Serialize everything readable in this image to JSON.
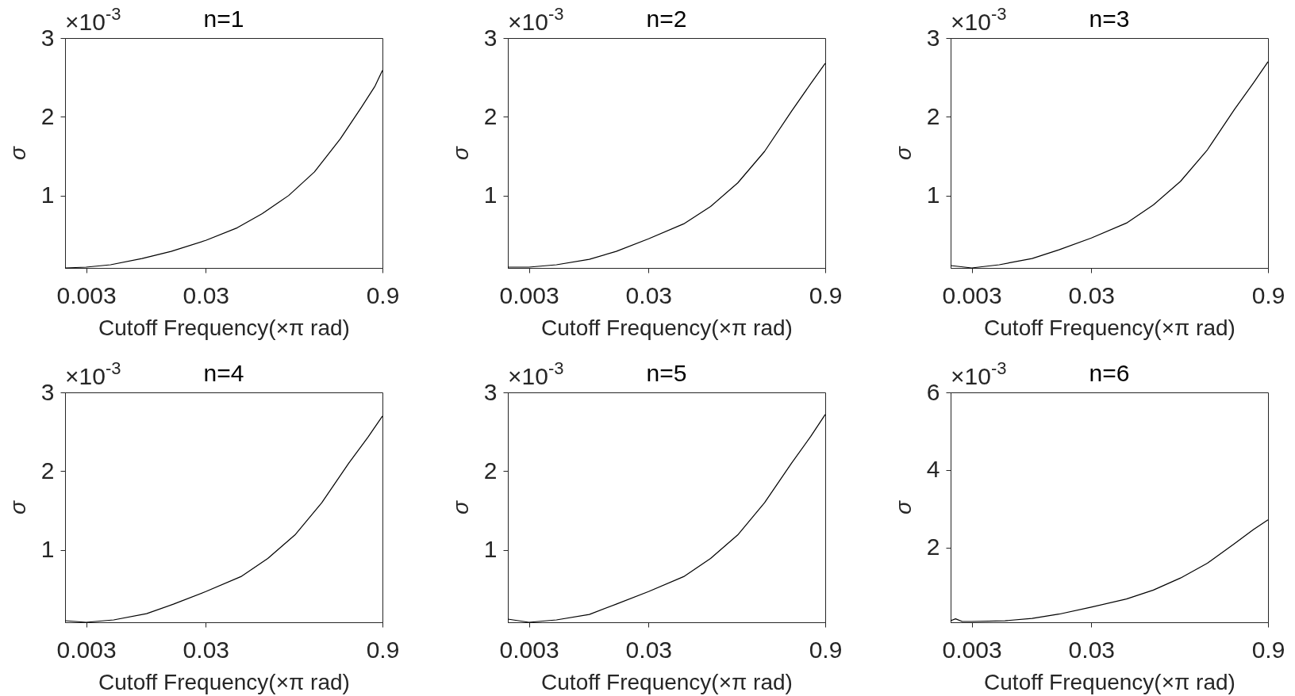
{
  "chart_data": [
    {
      "type": "line",
      "title": "n=1",
      "xlabel": "Cutoff Frequency(×π rad)",
      "ylabel": "σ",
      "annotations": [
        "×10$^{-3}$"
      ],
      "log": "x",
      "color": "#000000",
      "xlim": [
        0.002,
        0.9
      ],
      "ylim": [
        0.08,
        3
      ],
      "xticks": [
        0.003,
        0.03,
        0.9
      ],
      "yticks": [
        1,
        2,
        3
      ],
      "x": [
        0.002,
        0.003,
        0.0048,
        0.0088,
        0.0154,
        0.03,
        0.055,
        0.089,
        0.148,
        0.243,
        0.4,
        0.6,
        0.78,
        0.9
      ],
      "values": [
        0.08,
        0.09,
        0.12,
        0.2,
        0.29,
        0.43,
        0.59,
        0.77,
        1.0,
        1.3,
        1.72,
        2.12,
        2.39,
        2.59
      ]
    },
    {
      "type": "line",
      "title": "n=2",
      "xlabel": "Cutoff Frequency(×π rad)",
      "ylabel": "σ",
      "annotations": [
        "×10$^{-3}$"
      ],
      "log": "x",
      "color": "#000000",
      "xlim": [
        0.002,
        0.9
      ],
      "ylim": [
        0.08,
        3
      ],
      "xticks": [
        0.003,
        0.03,
        0.9
      ],
      "yticks": [
        1,
        2,
        3
      ],
      "x": [
        0.002,
        0.003,
        0.0051,
        0.0096,
        0.0161,
        0.03,
        0.059,
        0.099,
        0.167,
        0.28,
        0.47,
        0.68,
        0.9
      ],
      "values": [
        0.09,
        0.09,
        0.12,
        0.19,
        0.29,
        0.45,
        0.64,
        0.86,
        1.16,
        1.56,
        2.07,
        2.42,
        2.68
      ]
    },
    {
      "type": "line",
      "title": "n=3",
      "xlabel": "Cutoff Frequency(×π rad)",
      "ylabel": "σ",
      "annotations": [
        "×10$^{-3}$"
      ],
      "log": "x",
      "color": "#000000",
      "xlim": [
        0.002,
        0.9
      ],
      "ylim": [
        0.08,
        3
      ],
      "xticks": [
        0.003,
        0.03,
        0.9
      ],
      "yticks": [
        1,
        2,
        3
      ],
      "x": [
        0.002,
        0.003,
        0.0051,
        0.0096,
        0.0161,
        0.03,
        0.059,
        0.099,
        0.167,
        0.28,
        0.47,
        0.68,
        0.9
      ],
      "values": [
        0.11,
        0.08,
        0.12,
        0.2,
        0.31,
        0.46,
        0.65,
        0.88,
        1.18,
        1.58,
        2.09,
        2.43,
        2.7
      ]
    },
    {
      "type": "line",
      "title": "n=4",
      "xlabel": "Cutoff Frequency(×π rad)",
      "ylabel": "σ",
      "annotations": [
        "×10$^{-3}$"
      ],
      "log": "x",
      "color": "#000000",
      "xlim": [
        0.002,
        0.9
      ],
      "ylim": [
        0.08,
        3
      ],
      "xticks": [
        0.003,
        0.03,
        0.9
      ],
      "yticks": [
        1,
        2,
        3
      ],
      "x": [
        0.002,
        0.003,
        0.0051,
        0.0096,
        0.0161,
        0.03,
        0.059,
        0.099,
        0.167,
        0.28,
        0.47,
        0.68,
        0.9
      ],
      "values": [
        0.1,
        0.08,
        0.11,
        0.19,
        0.31,
        0.47,
        0.66,
        0.89,
        1.19,
        1.6,
        2.1,
        2.43,
        2.7
      ]
    },
    {
      "type": "line",
      "title": "n=5",
      "xlabel": "Cutoff Frequency(×π rad)",
      "ylabel": "σ",
      "annotations": [
        "×10$^{-3}$"
      ],
      "log": "x",
      "color": "#000000",
      "xlim": [
        0.002,
        0.9
      ],
      "ylim": [
        0.08,
        3
      ],
      "xticks": [
        0.003,
        0.03,
        0.9
      ],
      "yticks": [
        1,
        2,
        3
      ],
      "x": [
        0.002,
        0.003,
        0.0051,
        0.0096,
        0.0161,
        0.03,
        0.059,
        0.099,
        0.167,
        0.28,
        0.47,
        0.68,
        0.9
      ],
      "values": [
        0.12,
        0.08,
        0.11,
        0.18,
        0.31,
        0.47,
        0.66,
        0.89,
        1.19,
        1.6,
        2.1,
        2.44,
        2.72
      ]
    },
    {
      "type": "line",
      "title": "n=6",
      "xlabel": "Cutoff Frequency(×π rad)",
      "ylabel": "σ",
      "annotations": [
        "×10$^{-3}$"
      ],
      "log": "x",
      "color": "#000000",
      "xlim": [
        0.002,
        0.9
      ],
      "ylim": [
        0.08,
        6
      ],
      "xticks": [
        0.003,
        0.03,
        0.9
      ],
      "yticks": [
        2,
        4,
        6
      ],
      "x": [
        0.002,
        0.0022,
        0.0025,
        0.003,
        0.0057,
        0.0096,
        0.0161,
        0.03,
        0.059,
        0.099,
        0.167,
        0.28,
        0.47,
        0.68,
        0.9
      ],
      "values": [
        0.12,
        0.17,
        0.1,
        0.1,
        0.12,
        0.18,
        0.29,
        0.47,
        0.68,
        0.91,
        1.22,
        1.6,
        2.1,
        2.47,
        2.72
      ]
    }
  ]
}
